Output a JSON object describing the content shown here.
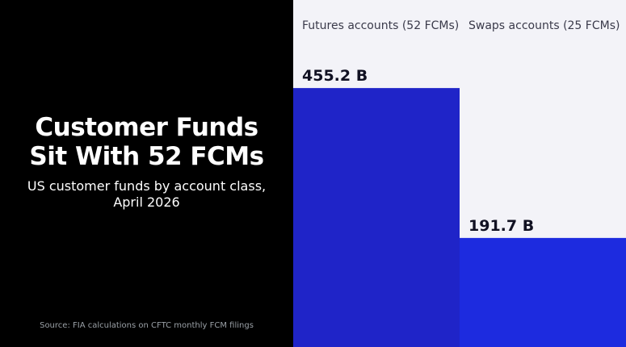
{
  "title_line1": "Customer Funds",
  "title_line2": "Sit With 52 FCMs",
  "subtitle_line1": "US customer funds by account class,",
  "subtitle_line2": "April 2026",
  "source": "Source: FIA calculations on CFTC monthly FCM filings",
  "colors": {
    "background_left": "#000000",
    "chart_background": "#f3f3f8",
    "futures_bar": "#1f24c8",
    "swaps_bar": "#1d2bdf"
  },
  "chart_data": {
    "type": "bar",
    "title": "Customer Funds Sit With 52 FCMs",
    "subtitle": "US customer funds by account class, April 2026",
    "categories": [
      "Futures accounts (52 FCMs)",
      "Swaps accounts (25 FCMs)"
    ],
    "values": [
      455.2,
      191.7
    ],
    "value_labels": [
      "455.2 B",
      "191.7 B"
    ],
    "unit": "B",
    "ylim": [
      0,
      610
    ],
    "grid": false,
    "legend": "none"
  }
}
